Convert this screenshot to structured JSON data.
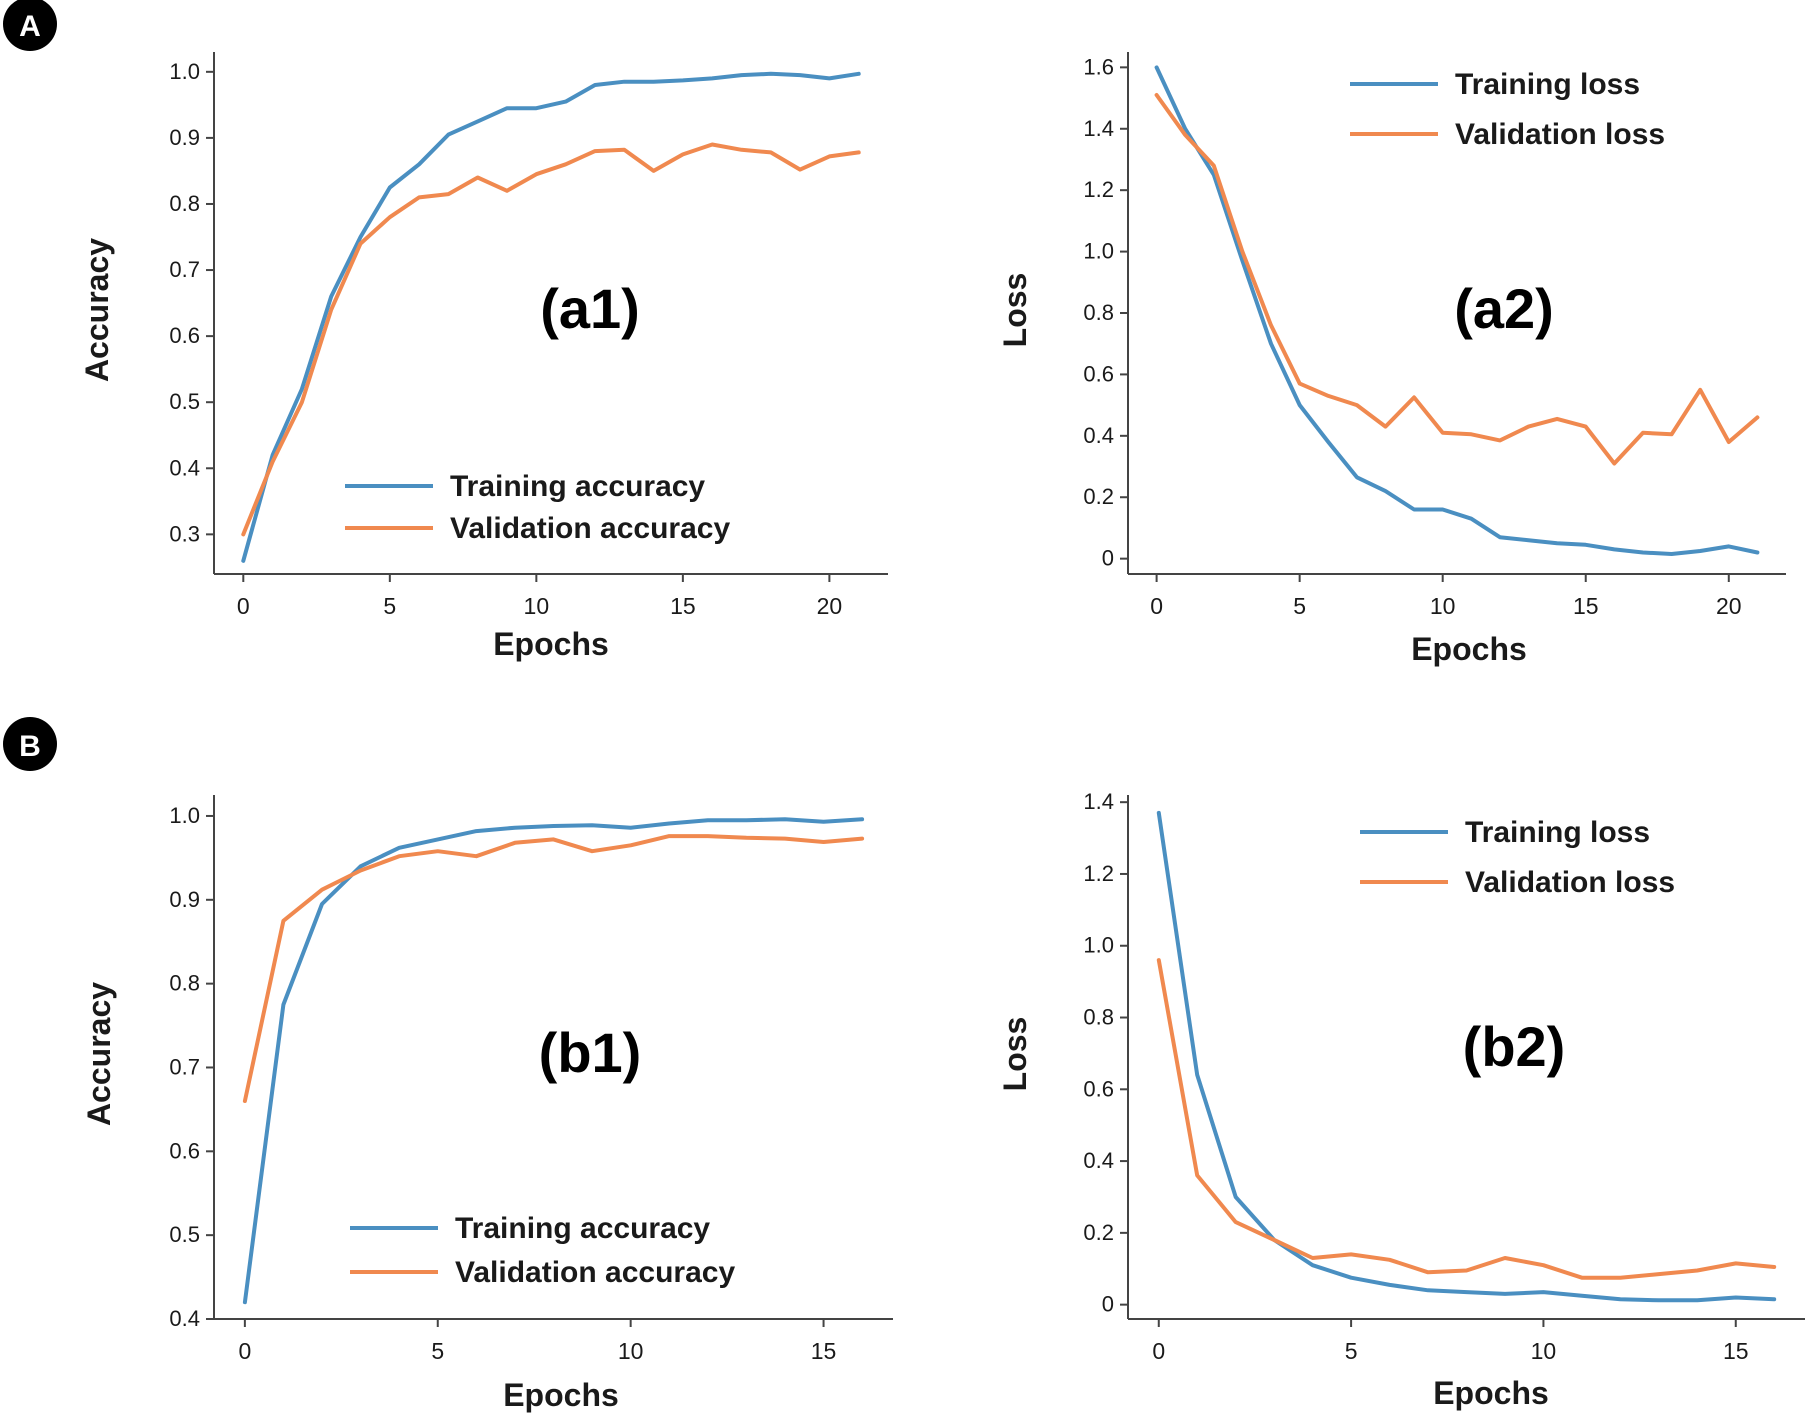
{
  "badges": [
    "A",
    "B"
  ],
  "colors": {
    "training": "#4a8fc1",
    "validation": "#f0894f",
    "axis": "#444444",
    "text": "#1a1a1a"
  },
  "chart_data": [
    {
      "type": "line",
      "panel_label": "(a1)",
      "xlabel": "Epochs",
      "ylabel": "Accuracy",
      "xlim": [
        -1,
        22
      ],
      "ylim": [
        0.24,
        1.03
      ],
      "xticks": [
        0,
        5,
        10,
        15,
        20
      ],
      "xtick_labels": [
        "0",
        "5",
        "10",
        "15",
        "20"
      ],
      "yticks": [
        0.3,
        0.4,
        0.5,
        0.6,
        0.7,
        0.8,
        0.9,
        1.0
      ],
      "ytick_labels": [
        "0.3",
        "0.4",
        "0.5",
        "0.6",
        "0.7",
        "0.8",
        "0.9",
        "1.0"
      ],
      "legend": "lower-center",
      "series": [
        {
          "name": "Training accuracy",
          "color": "training",
          "x": [
            0,
            1,
            2,
            3,
            4,
            5,
            6,
            7,
            8,
            9,
            10,
            11,
            12,
            13,
            14,
            15,
            16,
            17,
            18,
            19,
            20,
            21
          ],
          "y": [
            0.26,
            0.42,
            0.52,
            0.66,
            0.75,
            0.825,
            0.86,
            0.905,
            0.925,
            0.945,
            0.945,
            0.955,
            0.98,
            0.985,
            0.985,
            0.987,
            0.99,
            0.995,
            0.997,
            0.995,
            0.99,
            0.997
          ]
        },
        {
          "name": "Validation accuracy",
          "color": "validation",
          "x": [
            0,
            1,
            2,
            3,
            4,
            5,
            6,
            7,
            8,
            9,
            10,
            11,
            12,
            13,
            14,
            15,
            16,
            17,
            18,
            19,
            20,
            21
          ],
          "y": [
            0.3,
            0.41,
            0.5,
            0.64,
            0.74,
            0.78,
            0.81,
            0.815,
            0.84,
            0.82,
            0.845,
            0.86,
            0.88,
            0.882,
            0.85,
            0.875,
            0.89,
            0.882,
            0.878,
            0.852,
            0.872,
            0.878
          ]
        }
      ]
    },
    {
      "type": "line",
      "panel_label": "(a2)",
      "xlabel": "Epochs",
      "ylabel": "Loss",
      "xlim": [
        -1,
        22
      ],
      "ylim": [
        -0.05,
        1.65
      ],
      "xticks": [
        0,
        5,
        10,
        15,
        20
      ],
      "xtick_labels": [
        "0",
        "5",
        "10",
        "15",
        "20"
      ],
      "yticks": [
        0,
        0.2,
        0.4,
        0.6,
        0.8,
        1.0,
        1.2,
        1.4,
        1.6
      ],
      "ytick_labels": [
        "0",
        "0.2",
        "0.4",
        "0.6",
        "0.8",
        "1.0",
        "1.2",
        "1.4",
        "1.6"
      ],
      "legend": "top-right",
      "series": [
        {
          "name": "Training loss",
          "color": "training",
          "x": [
            0,
            1,
            2,
            3,
            4,
            5,
            6,
            7,
            8,
            9,
            10,
            11,
            12,
            13,
            14,
            15,
            16,
            17,
            18,
            19,
            20,
            21
          ],
          "y": [
            1.6,
            1.4,
            1.25,
            0.97,
            0.7,
            0.5,
            0.38,
            0.265,
            0.22,
            0.16,
            0.16,
            0.13,
            0.07,
            0.06,
            0.05,
            0.045,
            0.03,
            0.02,
            0.015,
            0.025,
            0.04,
            0.02
          ]
        },
        {
          "name": "Validation loss",
          "color": "validation",
          "x": [
            0,
            1,
            2,
            3,
            4,
            5,
            6,
            7,
            8,
            9,
            10,
            11,
            12,
            13,
            14,
            15,
            16,
            17,
            18,
            19,
            20,
            21
          ],
          "y": [
            1.51,
            1.38,
            1.28,
            1.0,
            0.76,
            0.57,
            0.53,
            0.5,
            0.43,
            0.525,
            0.41,
            0.405,
            0.385,
            0.43,
            0.455,
            0.43,
            0.31,
            0.41,
            0.405,
            0.55,
            0.38,
            0.46
          ]
        }
      ]
    },
    {
      "type": "line",
      "panel_label": "(b1)",
      "xlabel": "Epochs",
      "ylabel": "Accuracy",
      "xlim": [
        -0.8,
        16.8
      ],
      "ylim": [
        0.4,
        1.025
      ],
      "xticks": [
        0,
        5,
        10,
        15
      ],
      "xtick_labels": [
        "0",
        "5",
        "10",
        "15"
      ],
      "yticks": [
        0.4,
        0.5,
        0.6,
        0.7,
        0.8,
        0.9,
        1.0
      ],
      "ytick_labels": [
        "0.4",
        "0.5",
        "0.6",
        "0.7",
        "0.8",
        "0.9",
        "1.0"
      ],
      "legend": "lower-center",
      "series": [
        {
          "name": "Training accuracy",
          "color": "training",
          "x": [
            0,
            1,
            2,
            3,
            4,
            5,
            6,
            7,
            8,
            9,
            10,
            11,
            12,
            13,
            14,
            15,
            16
          ],
          "y": [
            0.42,
            0.775,
            0.895,
            0.94,
            0.962,
            0.972,
            0.982,
            0.986,
            0.988,
            0.989,
            0.986,
            0.991,
            0.995,
            0.995,
            0.996,
            0.993,
            0.996
          ]
        },
        {
          "name": "Validation accuracy",
          "color": "validation",
          "x": [
            0,
            1,
            2,
            3,
            4,
            5,
            6,
            7,
            8,
            9,
            10,
            11,
            12,
            13,
            14,
            15,
            16
          ],
          "y": [
            0.66,
            0.875,
            0.912,
            0.935,
            0.952,
            0.958,
            0.952,
            0.968,
            0.972,
            0.958,
            0.965,
            0.976,
            0.976,
            0.974,
            0.973,
            0.969,
            0.973
          ]
        }
      ]
    },
    {
      "type": "line",
      "panel_label": "(b2)",
      "xlabel": "Epochs",
      "ylabel": "Loss",
      "xlim": [
        -0.8,
        16.8
      ],
      "ylim": [
        -0.04,
        1.42
      ],
      "xticks": [
        0,
        5,
        10,
        15
      ],
      "xtick_labels": [
        "0",
        "5",
        "10",
        "15"
      ],
      "yticks": [
        0,
        0.2,
        0.4,
        0.6,
        0.8,
        1.0,
        1.2,
        1.4
      ],
      "ytick_labels": [
        "0",
        "0.2",
        "0.4",
        "0.6",
        "0.8",
        "1.0",
        "1.2",
        "1.4"
      ],
      "legend": "top-right",
      "series": [
        {
          "name": "Training loss",
          "color": "training",
          "x": [
            0,
            1,
            2,
            3,
            4,
            5,
            6,
            7,
            8,
            9,
            10,
            11,
            12,
            13,
            14,
            15,
            16
          ],
          "y": [
            1.37,
            0.64,
            0.3,
            0.18,
            0.11,
            0.075,
            0.055,
            0.04,
            0.035,
            0.03,
            0.035,
            0.025,
            0.015,
            0.012,
            0.012,
            0.02,
            0.015
          ]
        },
        {
          "name": "Validation loss",
          "color": "validation",
          "x": [
            0,
            1,
            2,
            3,
            4,
            5,
            6,
            7,
            8,
            9,
            10,
            11,
            12,
            13,
            14,
            15,
            16
          ],
          "y": [
            0.96,
            0.36,
            0.23,
            0.18,
            0.13,
            0.14,
            0.125,
            0.09,
            0.095,
            0.13,
            0.11,
            0.075,
            0.075,
            0.085,
            0.095,
            0.115,
            0.105
          ]
        }
      ]
    }
  ]
}
